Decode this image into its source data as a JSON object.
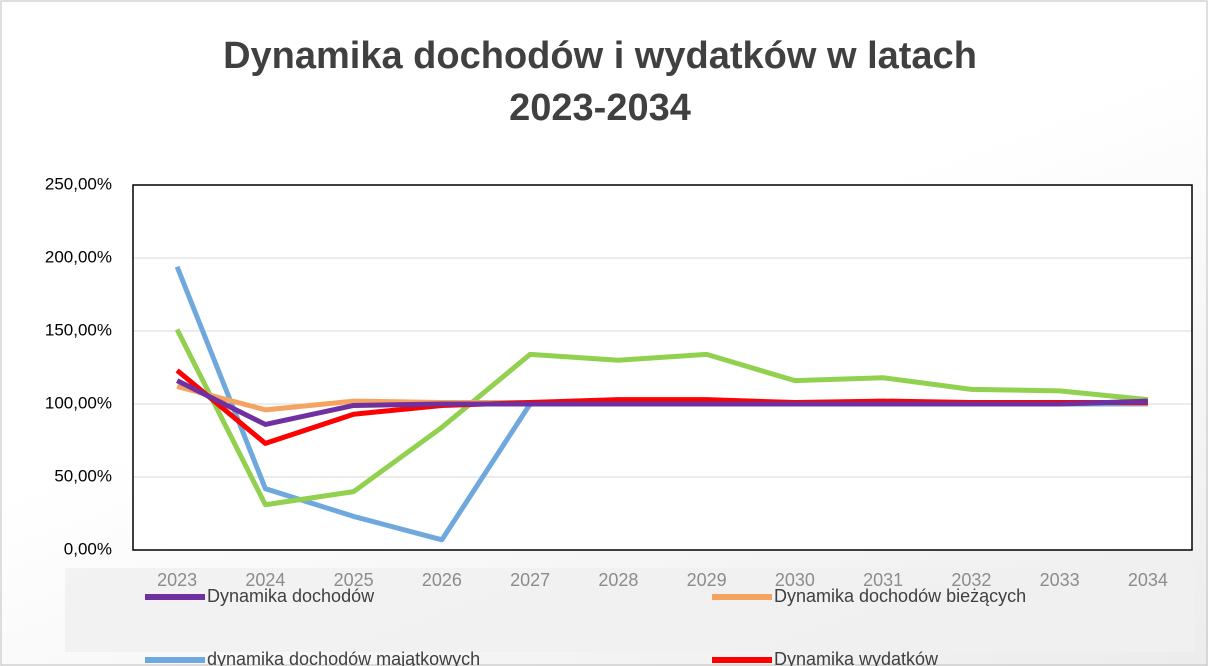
{
  "chart_data": {
    "type": "line",
    "title": "Dynamika dochodów i wydatków w latach 2023-2034",
    "categories": [
      "2023",
      "2024",
      "2025",
      "2026",
      "2027",
      "2028",
      "2029",
      "2030",
      "2031",
      "2032",
      "2033",
      "2034"
    ],
    "series": [
      {
        "name": "Dynamika dochodów",
        "color": "#7030a0",
        "values": [
          116,
          86,
          99,
          100,
          100,
          100,
          100,
          100,
          100,
          100,
          100,
          102
        ]
      },
      {
        "name": "Dynamika dochodów bieżących",
        "color": "#f4a460",
        "values": [
          112,
          96,
          102,
          101,
          101,
          102,
          102,
          101,
          101,
          101,
          101,
          101
        ]
      },
      {
        "name": "dynamika  dochodów majątkowych",
        "color": "#6fa8dc",
        "values": [
          194,
          42,
          23,
          7,
          100,
          100,
          100,
          100,
          100,
          100,
          100,
          100
        ]
      },
      {
        "name": "Dynamika wydatków",
        "color": "#ff0000",
        "values": [
          123,
          73,
          93,
          99,
          101,
          103,
          103,
          101,
          102,
          101,
          101,
          101
        ]
      },
      {
        "color": "#92d050",
        "values": [
          151,
          31,
          40,
          84,
          134,
          130,
          134,
          116,
          118,
          110,
          109,
          103
        ]
      }
    ],
    "ylim": [
      0,
      250
    ],
    "yticks": [
      {
        "value": 0,
        "label": "0,00%"
      },
      {
        "value": 50,
        "label": "50,00%"
      },
      {
        "value": 100,
        "label": "100,00%"
      },
      {
        "value": 150,
        "label": "150,00%"
      },
      {
        "value": 200,
        "label": "200,00%"
      },
      {
        "value": 250,
        "label": "250,00%"
      }
    ],
    "grid": true
  }
}
